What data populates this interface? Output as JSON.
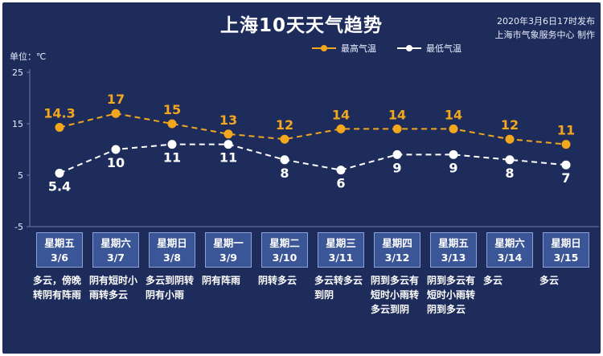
{
  "title": "上海10天天气趋势",
  "published": "2020年3月6日17时发布",
  "publisher": "上海市气象服务中心 制作",
  "unit": "单位：℃",
  "colors": {
    "high": "#f2a71c",
    "low": "#ffffff",
    "axis": "#6b7bb0",
    "bg": "#1e2c5c"
  },
  "chart_data": {
    "type": "line",
    "categories": [
      "星期五 3/6",
      "星期六 3/7",
      "星期日 3/8",
      "星期一 3/9",
      "星期二 3/10",
      "星期三 3/11",
      "星期四 3/12",
      "星期五 3/13",
      "星期六 3/14",
      "星期日 3/15"
    ],
    "ylim": [
      -5,
      25
    ],
    "yticks": [
      25,
      15,
      5,
      -5
    ],
    "legend": "top-center",
    "grid": false,
    "series": [
      {
        "name": "最高气温",
        "values": [
          14.3,
          17,
          15,
          13,
          12,
          14,
          14,
          14,
          12,
          11
        ],
        "labels": [
          "14.3",
          "17",
          "15",
          "13",
          "12",
          "14",
          "14",
          "14",
          "12",
          "11"
        ],
        "color": "#f2a71c",
        "dashed": true
      },
      {
        "name": "最低气温",
        "values": [
          5.4,
          10,
          11,
          11,
          8,
          6,
          9,
          9,
          8,
          7
        ],
        "labels": [
          "5.4",
          "10",
          "11",
          "11",
          "8",
          "6",
          "9",
          "9",
          "8",
          "7"
        ],
        "color": "#ffffff",
        "dashed": true
      }
    ]
  },
  "days": [
    {
      "weekday": "星期五",
      "date": "3/6",
      "weather": "多云，傍晚转阴有阵雨"
    },
    {
      "weekday": "星期六",
      "date": "3/7",
      "weather": "阴有短时小雨转多云"
    },
    {
      "weekday": "星期日",
      "date": "3/8",
      "weather": "多云到阴转阴有小雨"
    },
    {
      "weekday": "星期一",
      "date": "3/9",
      "weather": "阴有阵雨"
    },
    {
      "weekday": "星期二",
      "date": "3/10",
      "weather": "阴转多云"
    },
    {
      "weekday": "星期三",
      "date": "3/11",
      "weather": "多云转多云到阴"
    },
    {
      "weekday": "星期四",
      "date": "3/12",
      "weather": "阴到多云有短时小雨转多云到阴"
    },
    {
      "weekday": "星期五",
      "date": "3/13",
      "weather": "阴到多云有短时小雨转阴到多云"
    },
    {
      "weekday": "星期六",
      "date": "3/14",
      "weather": "多云"
    },
    {
      "weekday": "星期日",
      "date": "3/15",
      "weather": "多云"
    }
  ]
}
